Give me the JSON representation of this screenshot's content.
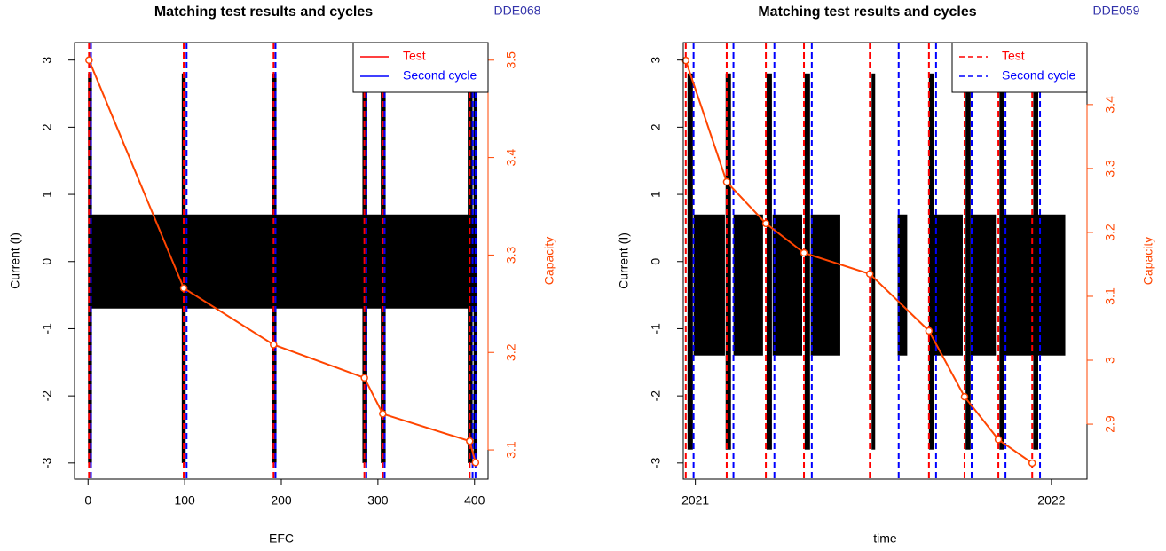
{
  "chart_data": [
    {
      "type": "line",
      "title": "Matching test results and cycles",
      "tag": "DDE068",
      "xlabel": "EFC",
      "ylabel": "Current (I)",
      "y2label": "Capacity",
      "xlim": [
        -14,
        414
      ],
      "xticks": [
        0,
        100,
        200,
        300,
        400
      ],
      "ylim": [
        -3.24,
        3.26
      ],
      "yticks": [
        -3,
        -2,
        -1,
        0,
        1,
        2,
        3
      ],
      "y2lim": [
        3.07,
        3.518
      ],
      "y2ticks": [
        3.1,
        3.2,
        3.3,
        3.4,
        3.5
      ],
      "legend_position": "topright",
      "legend_dashed": false,
      "current": {
        "color": "#000000",
        "segments": [
          {
            "x": [
              2,
              400
            ],
            "range": [
              -0.7,
              0.7
            ]
          },
          {
            "x": [
              0,
              4
            ],
            "range": [
              -3,
              2.8
            ]
          },
          {
            "x": [
              97,
              101
            ],
            "range": [
              -3,
              2.8
            ]
          },
          {
            "x": [
              190,
              195
            ],
            "range": [
              -3,
              2.8
            ]
          },
          {
            "x": [
              284,
              289
            ],
            "range": [
              -3,
              2.8
            ]
          },
          {
            "x": [
              303,
              308
            ],
            "range": [
              -3,
              2.8
            ]
          },
          {
            "x": [
              393,
              398
            ],
            "range": [
              -3,
              2.8
            ]
          },
          {
            "x": [
              399,
              403
            ],
            "range": [
              -3,
              2.8
            ]
          }
        ]
      },
      "series": [
        {
          "name": "Test",
          "color": "#ff0000",
          "x": [
            1,
            99,
            192,
            286,
            305,
            395
          ]
        },
        {
          "name": "Second cycle",
          "color": "#0000ff",
          "x": [
            3,
            102,
            194,
            288,
            307,
            398,
            401
          ]
        }
      ],
      "capacity": {
        "color": "#ff4500",
        "axis": "y2",
        "x": [
          1,
          99,
          192,
          286,
          305,
          395,
          401
        ],
        "values": [
          3.5,
          3.266,
          3.208,
          3.174,
          3.137,
          3.109,
          3.087
        ]
      }
    },
    {
      "type": "line",
      "title": "Matching test results and cycles",
      "tag": "DDE059",
      "xlabel": "time",
      "ylabel": "Current (I)",
      "y2label": "Capacity",
      "xlim": [
        2020.966,
        2022.1
      ],
      "xticks": [
        2021,
        2022
      ],
      "ylim": [
        -3.24,
        3.26
      ],
      "yticks": [
        -3,
        -2,
        -1,
        0,
        1,
        2,
        3
      ],
      "y2lim": [
        2.814,
        3.497
      ],
      "y2ticks": [
        2.9,
        3.0,
        3.1,
        3.2,
        3.3,
        3.4
      ],
      "legend_position": "topright",
      "legend_dashed": true,
      "current": {
        "color": "#000000",
        "segments": [
          {
            "x": [
              2020.995,
              2021.083
            ],
            "range": [
              -1.4,
              0.7
            ]
          },
          {
            "x": [
              2021.107,
              2021.19
            ],
            "range": [
              -1.4,
              0.7
            ]
          },
          {
            "x": [
              2021.217,
              2021.3
            ],
            "range": [
              -1.4,
              0.7
            ]
          },
          {
            "x": [
              2021.324,
              2021.407
            ],
            "range": [
              -1.4,
              0.7
            ]
          },
          {
            "x": [
              2021.568,
              2021.595
            ],
            "range": [
              -1.4,
              0.7
            ]
          },
          {
            "x": [
              2021.668,
              2021.751
            ],
            "range": [
              -1.4,
              0.7
            ]
          },
          {
            "x": [
              2021.773,
              2021.844
            ],
            "range": [
              -1.4,
              0.7
            ]
          },
          {
            "x": [
              2021.868,
              2022.039
            ],
            "range": [
              -1.4,
              0.7
            ]
          },
          {
            "x": [
              2020.978,
              2020.993
            ],
            "range": [
              -2.8,
              2.8
            ]
          },
          {
            "x": [
              2021.085,
              2021.1
            ],
            "range": [
              -2.8,
              2.8
            ]
          },
          {
            "x": [
              2021.2,
              2021.215
            ],
            "range": [
              -2.8,
              2.8
            ]
          },
          {
            "x": [
              2021.307,
              2021.322
            ],
            "range": [
              -2.8,
              2.8
            ]
          },
          {
            "x": [
              2021.495,
              2021.505
            ],
            "range": [
              -2.8,
              2.8
            ]
          },
          {
            "x": [
              2021.656,
              2021.671
            ],
            "range": [
              -2.8,
              2.8
            ]
          },
          {
            "x": [
              2021.759,
              2021.773
            ],
            "range": [
              -2.8,
              2.8
            ]
          },
          {
            "x": [
              2021.854,
              2021.868
            ],
            "range": [
              -2.8,
              2.8
            ]
          },
          {
            "x": [
              2021.949,
              2021.963
            ],
            "range": [
              -2.8,
              2.8
            ]
          }
        ]
      },
      "series": [
        {
          "name": "Test",
          "color": "#ff0000",
          "x": [
            2020.973,
            2021.088,
            2021.198,
            2021.305,
            2021.49,
            2021.656,
            2021.756,
            2021.851,
            2021.946
          ]
        },
        {
          "name": "Second cycle",
          "color": "#0000ff",
          "x": [
            2020.995,
            2021.107,
            2021.222,
            2021.327,
            2021.571,
            2021.676,
            2021.776,
            2021.871,
            2021.968
          ]
        }
      ],
      "capacity": {
        "color": "#ff4500",
        "axis": "y2",
        "x": [
          2020.973,
          2021.088,
          2021.198,
          2021.305,
          2021.49,
          2021.656,
          2021.756,
          2021.851,
          2021.946
        ],
        "values": [
          3.469,
          3.279,
          3.214,
          3.168,
          3.135,
          3.046,
          2.943,
          2.876,
          2.839
        ]
      }
    }
  ]
}
